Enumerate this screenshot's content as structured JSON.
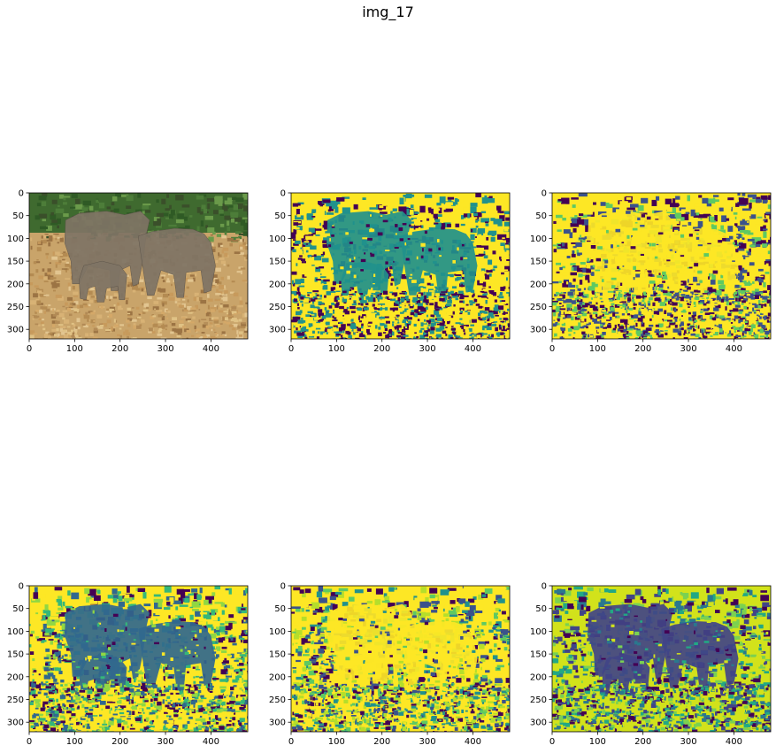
{
  "figure": {
    "title": "img_17"
  },
  "axes_common": {
    "x_ticks": [
      "0",
      "100",
      "200",
      "300",
      "400"
    ],
    "y_ticks": [
      "0",
      "50",
      "100",
      "150",
      "200",
      "250",
      "300"
    ],
    "x_range": [
      0,
      481
    ],
    "y_range": [
      0,
      321
    ]
  },
  "panels": [
    {
      "id": "original",
      "kind": "photo",
      "description_key": "rgb"
    },
    {
      "id": "cluster-1",
      "kind": "viridis-map",
      "palette": [
        "#440154",
        "#21918c",
        "#fde725"
      ]
    },
    {
      "id": "cluster-2",
      "kind": "viridis-map",
      "palette": [
        "#440154",
        "#3b528b",
        "#5ec962",
        "#fde725"
      ]
    },
    {
      "id": "cluster-3",
      "kind": "viridis-map",
      "palette": [
        "#440154",
        "#31688e",
        "#35b779",
        "#90d743",
        "#fde725"
      ]
    },
    {
      "id": "cluster-4",
      "kind": "viridis-map",
      "palette": [
        "#440154",
        "#3b528b",
        "#21918c",
        "#5ec962",
        "#b5de2b",
        "#fde725"
      ]
    },
    {
      "id": "cluster-5",
      "kind": "viridis-map",
      "palette": [
        "#440154",
        "#414487",
        "#2a788e",
        "#22a884",
        "#7ad151",
        "#d2e21b"
      ]
    }
  ]
}
